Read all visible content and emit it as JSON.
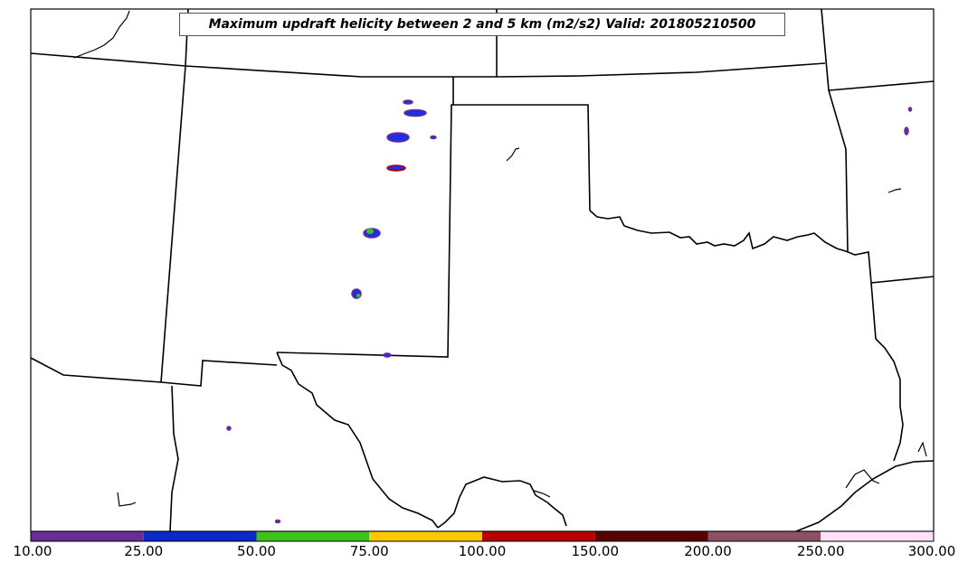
{
  "title": "Maximum updraft helicity between 2 and 5 km (m2/s2) Valid: 201805210500",
  "colorbar": {
    "labels": [
      "10.00",
      "25.00",
      "50.00",
      "75.00",
      "100.00",
      "150.00",
      "200.00",
      "250.00",
      "300.00"
    ],
    "colors": [
      "#6a2d96",
      "#0a2ac8",
      "#3cc21a",
      "#ffc800",
      "#b40000",
      "#5a0000",
      "#8c5064",
      "#ffe1f5"
    ]
  },
  "colors": {
    "border": "#000000",
    "purple": "#6a2d96",
    "blue": "#1e2ee0",
    "green": "#3cc21a"
  }
}
